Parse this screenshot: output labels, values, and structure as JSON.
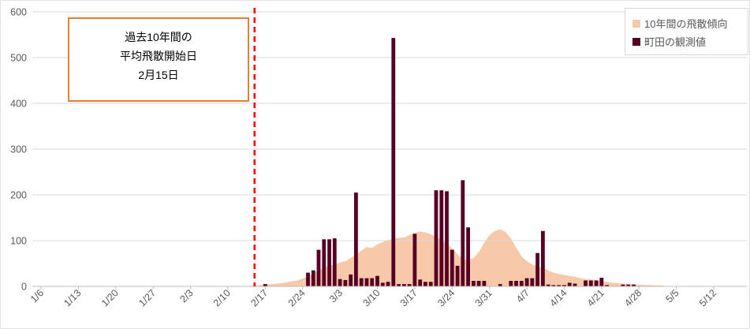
{
  "chart_data": {
    "type": "combo",
    "subtypes": [
      "area",
      "bar"
    ],
    "title": "",
    "x_axis": {
      "tick_labels": [
        "1/6",
        "1/13",
        "1/20",
        "1/27",
        "2/3",
        "2/10",
        "2/17",
        "2/24",
        "3/3",
        "3/10",
        "3/17",
        "3/24",
        "3/31",
        "4/7",
        "4/14",
        "4/21",
        "4/28",
        "5/5",
        "5/12"
      ],
      "unit": "date (M/D), daily categories",
      "label_rotation_deg": 45
    },
    "y_axis": {
      "min": 0,
      "max": 600,
      "step": 100,
      "tick_labels": [
        "0",
        "100",
        "200",
        "300",
        "400",
        "500",
        "600"
      ]
    },
    "grid": "horizontal",
    "legend": {
      "position": "top-right",
      "bordered": true
    },
    "series": [
      {
        "name": "10年間の飛散傾向",
        "type": "area",
        "color": "#F8C9A8",
        "points": [
          [
            "2/13",
            0
          ],
          [
            "2/14",
            1
          ],
          [
            "2/15",
            2
          ],
          [
            "2/16",
            3
          ],
          [
            "2/17",
            4
          ],
          [
            "2/18",
            5
          ],
          [
            "2/19",
            6
          ],
          [
            "2/20",
            7
          ],
          [
            "2/21",
            9
          ],
          [
            "2/22",
            11
          ],
          [
            "2/23",
            13
          ],
          [
            "2/24",
            17
          ],
          [
            "2/25",
            22
          ],
          [
            "2/26",
            28
          ],
          [
            "2/27",
            35
          ],
          [
            "2/28",
            40
          ],
          [
            "3/1",
            45
          ],
          [
            "3/2",
            49
          ],
          [
            "3/3",
            52
          ],
          [
            "3/4",
            55
          ],
          [
            "3/5",
            62
          ],
          [
            "3/6",
            70
          ],
          [
            "3/7",
            78
          ],
          [
            "3/8",
            86
          ],
          [
            "3/9",
            84
          ],
          [
            "3/10",
            92
          ],
          [
            "3/11",
            97
          ],
          [
            "3/12",
            101
          ],
          [
            "3/13",
            104
          ],
          [
            "3/14",
            106
          ],
          [
            "3/15",
            107
          ],
          [
            "3/16",
            112
          ],
          [
            "3/17",
            117
          ],
          [
            "3/18",
            120
          ],
          [
            "3/19",
            118
          ],
          [
            "3/20",
            114
          ],
          [
            "3/21",
            108
          ],
          [
            "3/22",
            101
          ],
          [
            "3/23",
            93
          ],
          [
            "3/24",
            83
          ],
          [
            "3/25",
            70
          ],
          [
            "3/26",
            60
          ],
          [
            "3/27",
            57
          ],
          [
            "3/28",
            62
          ],
          [
            "3/29",
            75
          ],
          [
            "3/30",
            95
          ],
          [
            "3/31",
            112
          ],
          [
            "4/1",
            121
          ],
          [
            "4/2",
            125
          ],
          [
            "4/3",
            119
          ],
          [
            "4/4",
            105
          ],
          [
            "4/5",
            85
          ],
          [
            "4/6",
            66
          ],
          [
            "4/7",
            55
          ],
          [
            "4/8",
            48
          ],
          [
            "4/9",
            44
          ],
          [
            "4/10",
            41
          ],
          [
            "4/11",
            35
          ],
          [
            "4/12",
            30
          ],
          [
            "4/13",
            27
          ],
          [
            "4/14",
            25
          ],
          [
            "4/15",
            23
          ],
          [
            "4/16",
            21
          ],
          [
            "4/17",
            18
          ],
          [
            "4/18",
            16
          ],
          [
            "4/19",
            15
          ],
          [
            "4/20",
            14
          ],
          [
            "4/21",
            12
          ],
          [
            "4/22",
            10
          ],
          [
            "4/23",
            8
          ],
          [
            "4/24",
            7
          ],
          [
            "4/25",
            6
          ],
          [
            "4/26",
            5
          ],
          [
            "4/27",
            5
          ],
          [
            "4/28",
            4
          ],
          [
            "4/29",
            3
          ],
          [
            "4/30",
            3
          ],
          [
            "5/1",
            2
          ],
          [
            "5/2",
            2
          ],
          [
            "5/3",
            1
          ],
          [
            "5/4",
            1
          ],
          [
            "5/5",
            0
          ]
        ]
      },
      {
        "name": "町田の観測値",
        "type": "bar",
        "color": "#570025",
        "points": [
          [
            "2/17",
            5
          ],
          [
            "2/25",
            30
          ],
          [
            "2/26",
            35
          ],
          [
            "2/27",
            80
          ],
          [
            "2/28",
            103
          ],
          [
            "3/1",
            103
          ],
          [
            "3/2",
            105
          ],
          [
            "3/3",
            16
          ],
          [
            "3/4",
            14
          ],
          [
            "3/5",
            26
          ],
          [
            "3/6",
            205
          ],
          [
            "3/7",
            18
          ],
          [
            "3/8",
            18
          ],
          [
            "3/9",
            18
          ],
          [
            "3/10",
            23
          ],
          [
            "3/11",
            8
          ],
          [
            "3/12",
            10
          ],
          [
            "3/13",
            543
          ],
          [
            "3/14",
            5
          ],
          [
            "3/15",
            5
          ],
          [
            "3/16",
            5
          ],
          [
            "3/17",
            115
          ],
          [
            "3/18",
            15
          ],
          [
            "3/19",
            10
          ],
          [
            "3/20",
            10
          ],
          [
            "3/21",
            210
          ],
          [
            "3/22",
            210
          ],
          [
            "3/23",
            208
          ],
          [
            "3/24",
            80
          ],
          [
            "3/25",
            45
          ],
          [
            "3/26",
            232
          ],
          [
            "3/27",
            129
          ],
          [
            "3/28",
            12
          ],
          [
            "3/29",
            12
          ],
          [
            "3/30",
            12
          ],
          [
            "4/2",
            5
          ],
          [
            "4/4",
            12
          ],
          [
            "4/5",
            12
          ],
          [
            "4/6",
            12
          ],
          [
            "4/7",
            18
          ],
          [
            "4/8",
            18
          ],
          [
            "4/9",
            73
          ],
          [
            "4/10",
            121
          ],
          [
            "4/11",
            4
          ],
          [
            "4/12",
            3
          ],
          [
            "4/13",
            3
          ],
          [
            "4/14",
            3
          ],
          [
            "4/15",
            8
          ],
          [
            "4/16",
            6
          ],
          [
            "4/18",
            13
          ],
          [
            "4/19",
            13
          ],
          [
            "4/20",
            13
          ],
          [
            "4/21",
            19
          ],
          [
            "4/22",
            3
          ],
          [
            "4/25",
            4
          ],
          [
            "4/26",
            4
          ],
          [
            "4/27",
            4
          ]
        ]
      }
    ],
    "reference_line": {
      "date": "2/15",
      "color": "#FF0000",
      "style": "dashed"
    },
    "annotation_box": {
      "lines": [
        "過去10年間の",
        "平均飛散開始日",
        "2月15日"
      ],
      "border_color": "#ED7D31"
    },
    "colors": {
      "gridline": "#D9D9D9",
      "axis": "#BFBFBF",
      "tick_label": "#595959"
    }
  }
}
